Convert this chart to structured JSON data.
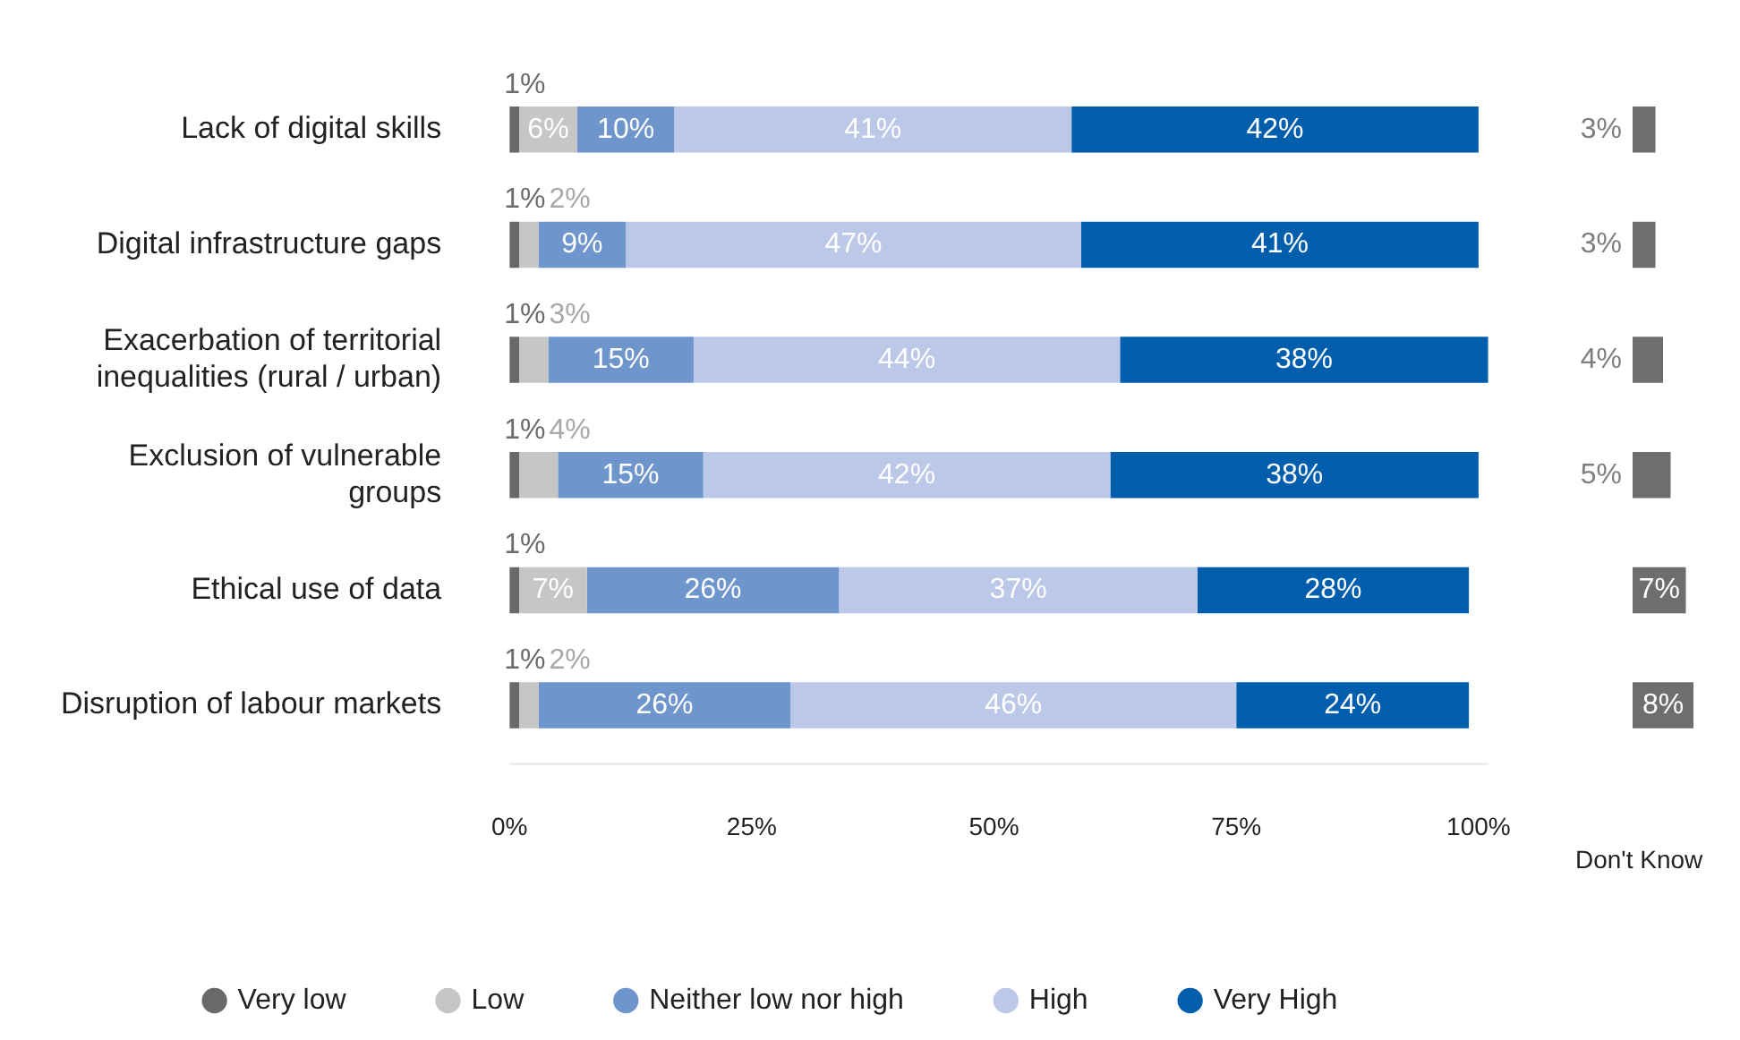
{
  "chart_data": [
    {
      "type": "bar",
      "orientation": "horizontal",
      "stacked": true,
      "legend": "bottom",
      "marker": "circle",
      "grid": false,
      "categories": [
        "Lack of digital skills",
        "Digital infrastructure gaps",
        "Exacerbation of territorial inequalities (rural / urban)",
        "Exclusion of vulnerable groups",
        "Ethical use of data",
        "Disruption of labour markets"
      ],
      "series": [
        {
          "name": "Very low",
          "color": "#696969",
          "values": [
            1,
            1,
            1,
            1,
            1,
            1
          ],
          "value_labels": [
            "1%",
            "1%",
            "1%",
            "1%",
            "1%",
            "1%"
          ]
        },
        {
          "name": "Low",
          "color": "#c6c6c6",
          "values": [
            6,
            2,
            3,
            4,
            7,
            2
          ],
          "value_labels": [
            "6%",
            "2%",
            "3%",
            "4%",
            "7%",
            "2%"
          ]
        },
        {
          "name": "Neither low nor high",
          "color": "#6e96cc",
          "values": [
            10,
            9,
            15,
            15,
            26,
            26
          ],
          "value_labels": [
            "10%",
            "9%",
            "15%",
            "15%",
            "26%",
            "26%"
          ]
        },
        {
          "name": "High",
          "color": "#bcc8e8",
          "values": [
            41,
            47,
            44,
            42,
            37,
            46
          ],
          "value_labels": [
            "41%",
            "47%",
            "44%",
            "42%",
            "37%",
            "46%"
          ]
        },
        {
          "name": "Very High",
          "color": "#005eac",
          "values": [
            42,
            41,
            38,
            38,
            28,
            24
          ],
          "value_labels": [
            "42%",
            "41%",
            "38%",
            "38%",
            "28%",
            "24%"
          ]
        }
      ],
      "xlim": [
        0,
        101
      ],
      "xticks": [
        {
          "value": 0,
          "label": "0%"
        },
        {
          "value": 25,
          "label": "25%"
        },
        {
          "value": 50,
          "label": "50%"
        },
        {
          "value": 75,
          "label": "75%"
        },
        {
          "value": 100,
          "label": "100%"
        }
      ]
    },
    {
      "type": "bar",
      "orientation": "horizontal",
      "legend": false,
      "tick_labels": false,
      "xlabel": "Don't Know",
      "categories": [
        null,
        null,
        null,
        null,
        null,
        null
      ],
      "series": [
        {
          "color": "#6e6e6e",
          "values": [
            3,
            3,
            4,
            5,
            7,
            8
          ],
          "value_labels": [
            "3%",
            "3%",
            "4%",
            "5%",
            "7%",
            "8%"
          ]
        }
      ]
    }
  ]
}
